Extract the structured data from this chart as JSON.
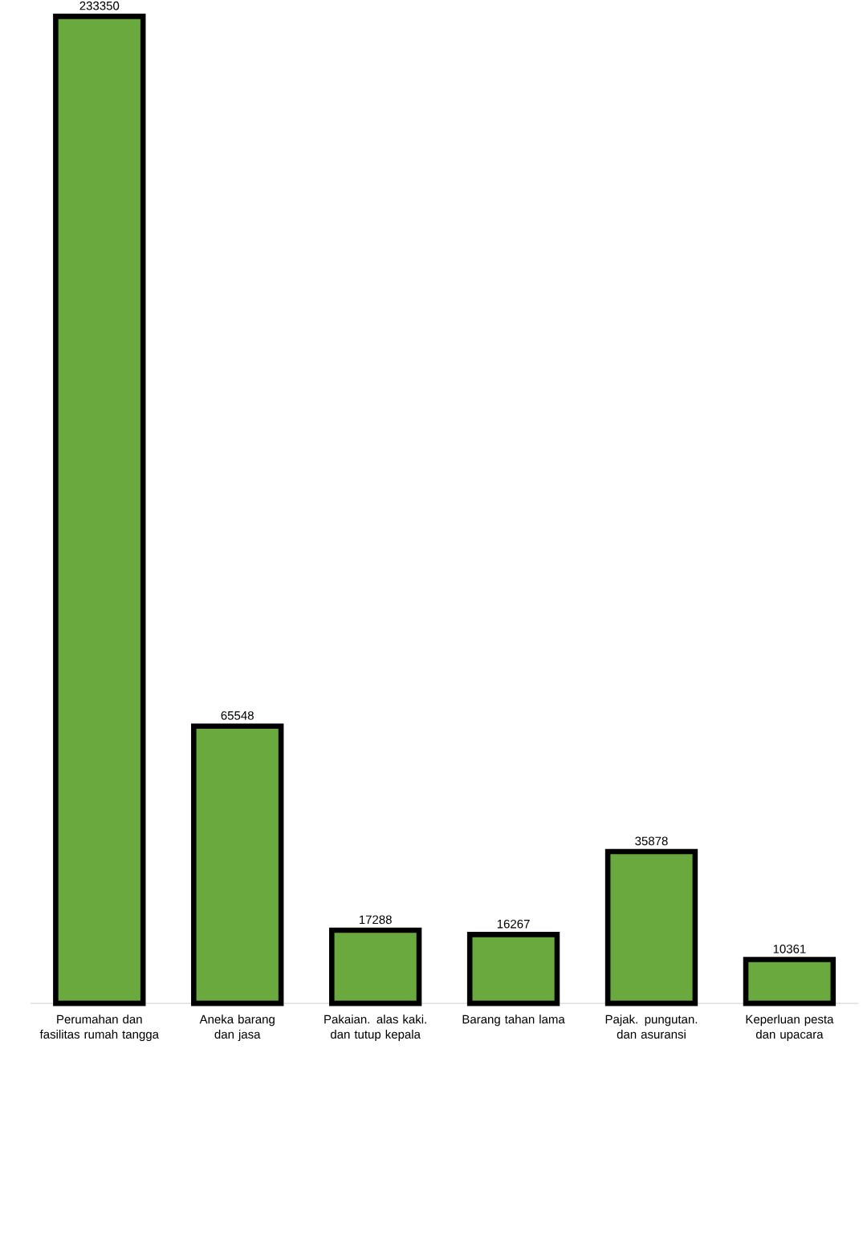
{
  "chart_data": {
    "type": "bar",
    "categories": [
      "Perumahan dan fasilitas rumah tangga",
      "Aneka barang dan jasa",
      "Pakaian. alas kaki. dan tutup kepala",
      "Barang tahan lama",
      "Pajak. pungutan. dan asuransi",
      "Keperluan pesta dan upacara"
    ],
    "values": [
      233350,
      65548,
      17288,
      16267,
      35878,
      10361
    ],
    "color": "#6aa93e",
    "data_labels": true
  }
}
